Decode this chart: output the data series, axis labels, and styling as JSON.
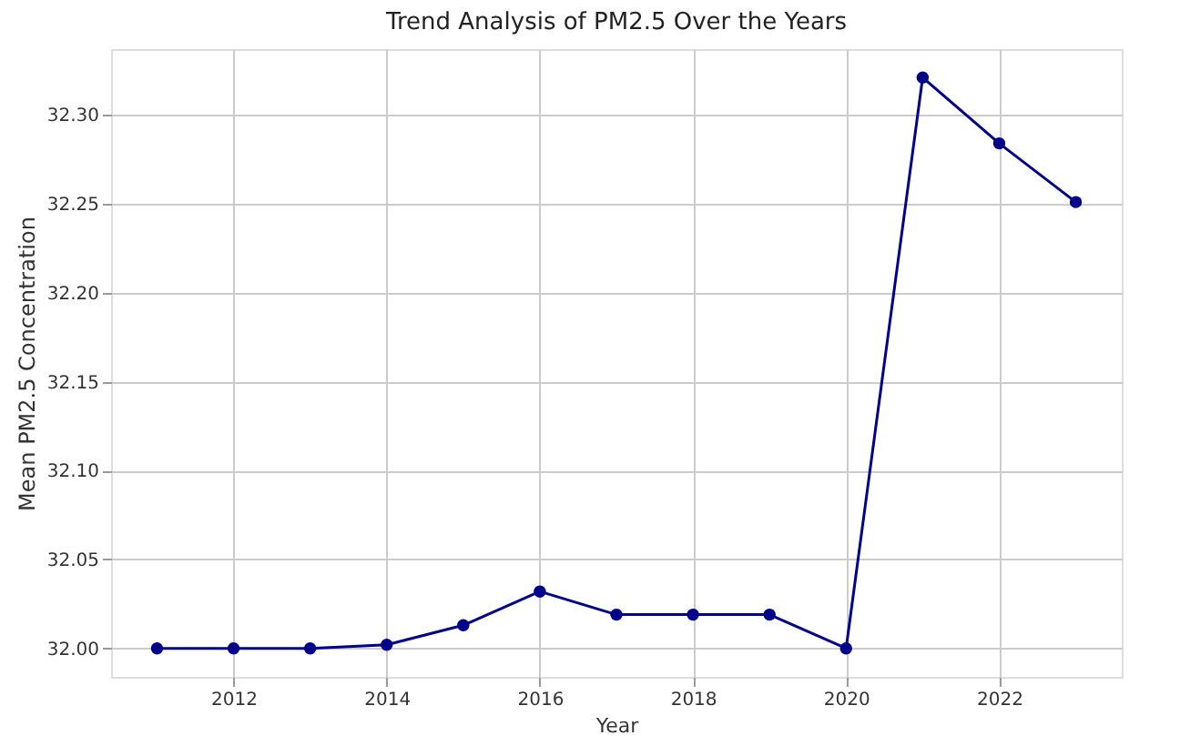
{
  "chart_data": {
    "type": "line",
    "title": "Trend Analysis of PM2.5 Over the Years",
    "xlabel": "Year",
    "ylabel": "Mean PM2.5 Concentration",
    "x": [
      2011,
      2012,
      2013,
      2014,
      2015,
      2016,
      2017,
      2018,
      2019,
      2020,
      2021,
      2022,
      2023
    ],
    "series": [
      {
        "color": "#00008b",
        "values": [
          32.0,
          32.0,
          32.0,
          32.002,
          32.013,
          32.032,
          32.019,
          32.019,
          32.019,
          32.0,
          32.321,
          32.284,
          32.251
        ]
      }
    ],
    "xlim": [
      2010.4,
      2023.6
    ],
    "xticks": [
      2012,
      2014,
      2016,
      2018,
      2020,
      2022
    ],
    "ylim": [
      31.984,
      32.337
    ],
    "yticks": [
      {
        "value": 32.0,
        "label": "32.00"
      },
      {
        "value": 32.05,
        "label": "32.05"
      },
      {
        "value": 32.1,
        "label": "32.10"
      },
      {
        "value": 32.15,
        "label": "32.15"
      },
      {
        "value": 32.2,
        "label": "32.20"
      },
      {
        "value": 32.25,
        "label": "32.25"
      },
      {
        "value": 32.3,
        "label": "32.30"
      }
    ],
    "grid": true,
    "marker": "circle",
    "line_style": "solid"
  }
}
